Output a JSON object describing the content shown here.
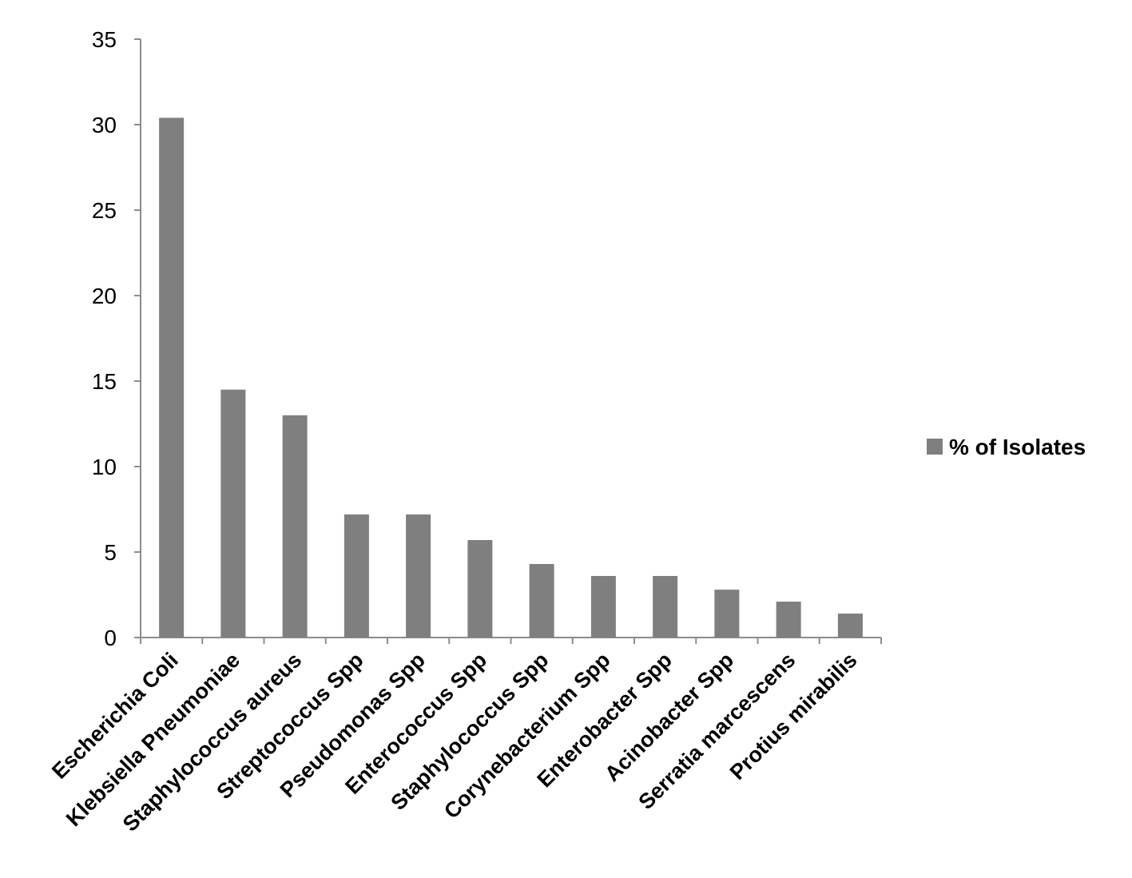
{
  "chart_data": {
    "type": "bar",
    "categories": [
      "Escherichia Coli",
      "Klebsiella Pneumoniae",
      "Staphylococcus aureus",
      "Streptococcus Spp",
      "Pseudomonas Spp",
      "Enterococcus Spp",
      "Staphylococcus Spp",
      "Corynebacterium Spp",
      "Enterobacter Spp",
      "Acinobacter Spp",
      "Serratia marcescens",
      "Protius mirabilis"
    ],
    "series": [
      {
        "name": "% of Isolates",
        "values": [
          30.4,
          14.5,
          13.0,
          7.2,
          7.2,
          5.7,
          4.3,
          3.6,
          3.6,
          2.8,
          2.1,
          1.4
        ],
        "color": "#7f7f7f"
      }
    ],
    "title": "",
    "xlabel": "",
    "ylabel": "",
    "ylim": [
      0,
      35
    ],
    "yticks": [
      "0",
      "5",
      "10",
      "15",
      "20",
      "25",
      "30",
      "35"
    ],
    "grid": false,
    "legend_position": "right"
  }
}
